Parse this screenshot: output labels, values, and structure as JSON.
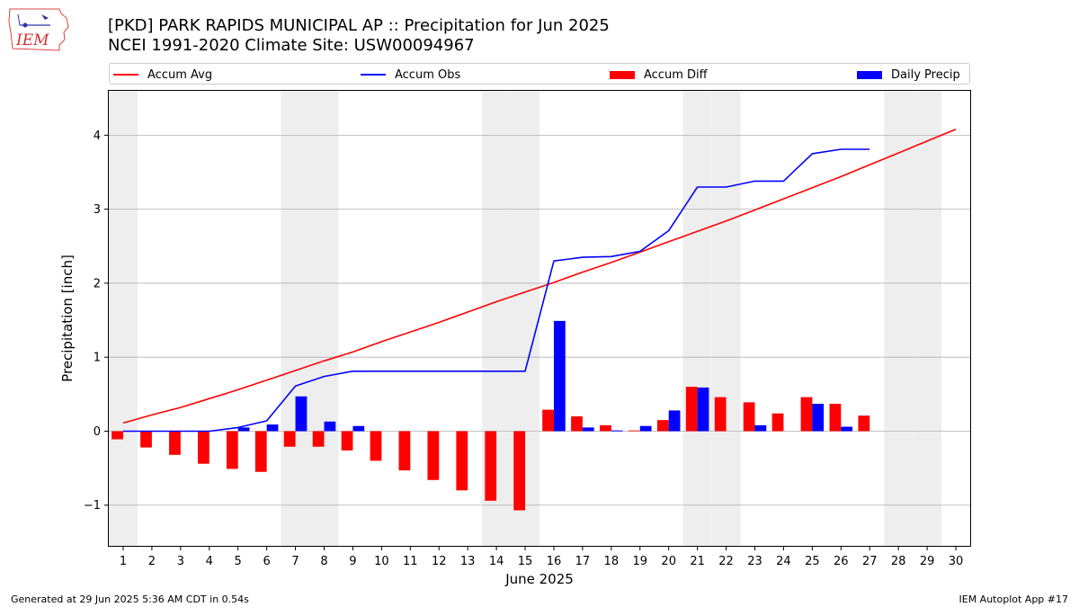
{
  "header": {
    "title": "[PKD] PARK RAPIDS MUNICIPAL AP :: Precipitation for Jun 2025",
    "subtitle": "NCEI 1991-2020 Climate Site: USW00094967"
  },
  "logo": {
    "text": "IEM",
    "icon": "iem-iowa-logo-icon"
  },
  "footer": {
    "generated": "Generated at 29 Jun 2025 5:36 AM CDT in 0.54s",
    "app": "IEM Autoplot App #17"
  },
  "colors": {
    "avg": "#ff0000",
    "obs": "#0000ff",
    "diff": "#ff0000",
    "daily": "#0000ff",
    "weekend_shade": "#eeeeee",
    "grid": "#b0b0b0"
  },
  "chart_data": {
    "type": "bar",
    "xlabel": "June 2025",
    "ylabel": "Precipitation [inch]",
    "ylim": [
      -1.55,
      4.6
    ],
    "yticks": [
      -1,
      0,
      1,
      2,
      3,
      4
    ],
    "ytick_labels": [
      "−1",
      "0",
      "1",
      "2",
      "3",
      "4"
    ],
    "grid": "horizontal",
    "legend_position": "top",
    "x": [
      1,
      2,
      3,
      4,
      5,
      6,
      7,
      8,
      9,
      10,
      11,
      12,
      13,
      14,
      15,
      16,
      17,
      18,
      19,
      20,
      21,
      22,
      23,
      24,
      25,
      26,
      27,
      28,
      29,
      30
    ],
    "shaded_days": [
      1,
      7,
      8,
      14,
      15,
      21,
      22,
      28,
      29
    ],
    "legend": [
      "Accum Avg",
      "Accum Obs",
      "Accum Diff",
      "Daily Precip"
    ],
    "series": [
      {
        "name": "Accum Avg",
        "kind": "line",
        "values": [
          0.11,
          0.22,
          0.32,
          0.44,
          0.56,
          0.69,
          0.82,
          0.95,
          1.07,
          1.21,
          1.34,
          1.47,
          1.61,
          1.75,
          1.88,
          2.01,
          2.15,
          2.28,
          2.42,
          2.56,
          2.7,
          2.84,
          2.99,
          3.14,
          3.29,
          3.44,
          3.6,
          3.76,
          3.92,
          4.08
        ]
      },
      {
        "name": "Accum Obs",
        "kind": "line",
        "values": [
          0.0,
          0.0,
          0.0,
          0.0,
          0.05,
          0.14,
          0.61,
          0.74,
          0.81,
          0.81,
          0.81,
          0.81,
          0.81,
          0.81,
          0.81,
          2.3,
          2.35,
          2.36,
          2.43,
          2.71,
          3.3,
          3.3,
          3.38,
          3.38,
          3.75,
          3.81,
          3.81,
          null,
          null,
          null
        ]
      },
      {
        "name": "Accum Diff",
        "kind": "bar",
        "values": [
          -0.11,
          -0.22,
          -0.32,
          -0.44,
          -0.51,
          -0.55,
          -0.21,
          -0.21,
          -0.26,
          -0.4,
          -0.53,
          -0.66,
          -0.8,
          -0.94,
          -1.07,
          0.29,
          0.2,
          0.08,
          0.01,
          0.15,
          0.6,
          0.46,
          0.39,
          0.24,
          0.46,
          0.37,
          0.21,
          null,
          null,
          null
        ]
      },
      {
        "name": "Daily Precip",
        "kind": "bar",
        "values": [
          0.0,
          0.0,
          0.0,
          0.0,
          0.05,
          0.09,
          0.47,
          0.13,
          0.07,
          0.0,
          0.0,
          0.0,
          0.0,
          0.0,
          0.0,
          1.49,
          0.05,
          0.01,
          0.07,
          0.28,
          0.59,
          0.0,
          0.08,
          0.0,
          0.37,
          0.06,
          0.0,
          null,
          null,
          null
        ]
      }
    ]
  }
}
